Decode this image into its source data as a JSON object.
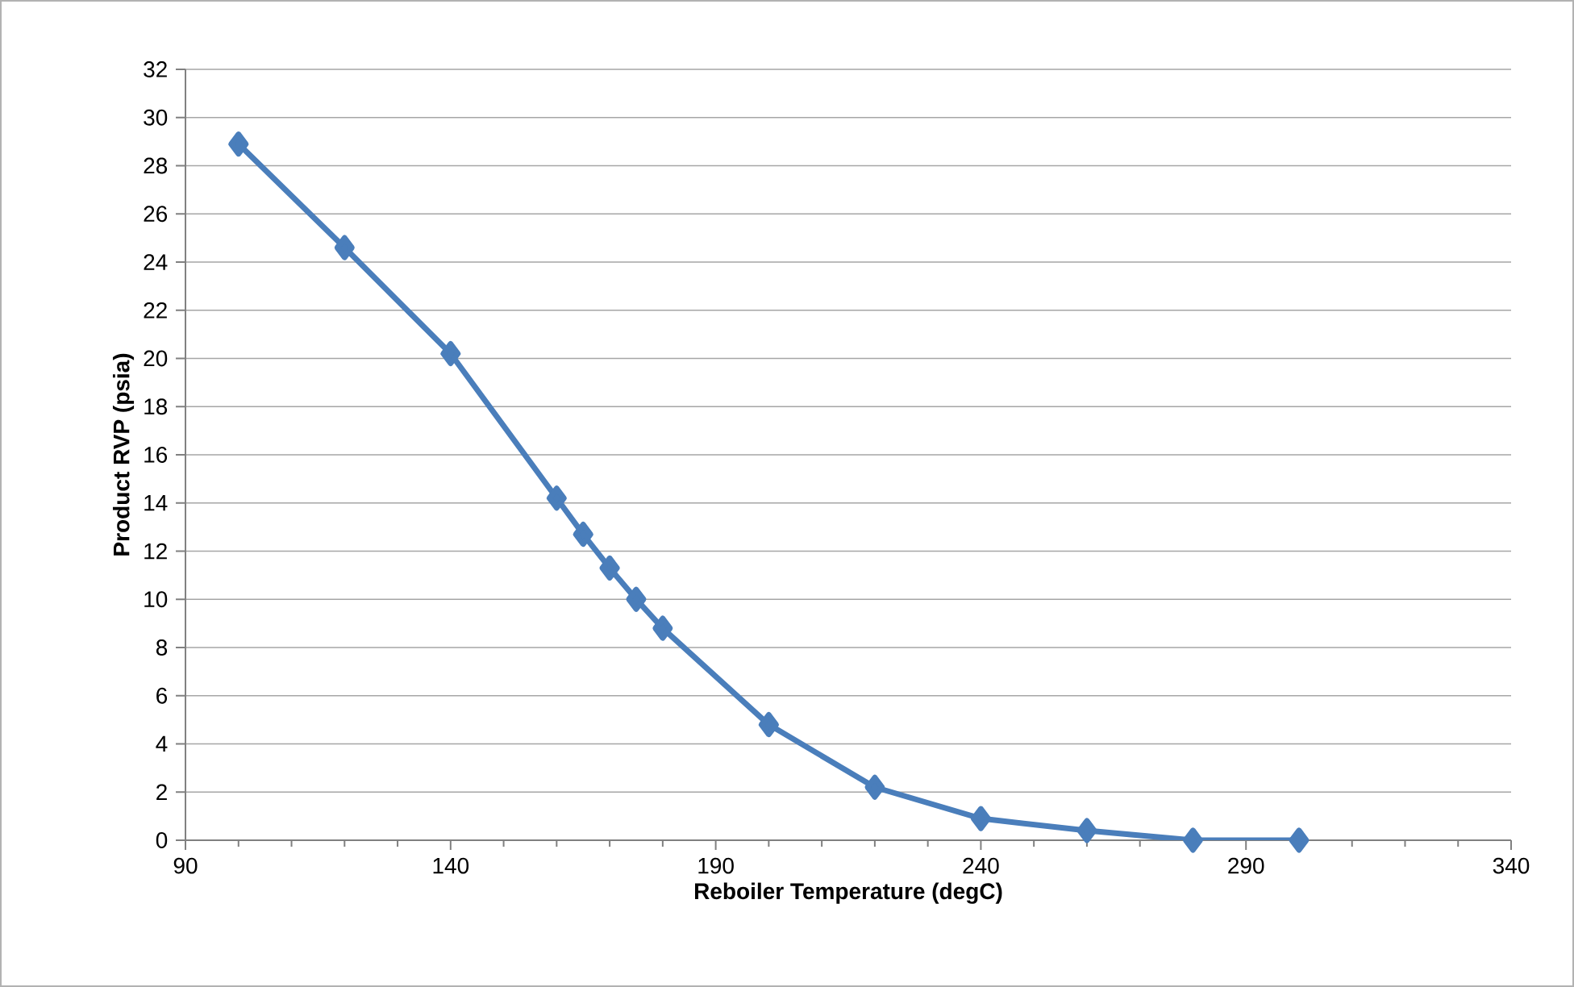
{
  "chart_data": {
    "type": "line",
    "xlabel": "Reboiler Temperature (degC)",
    "ylabel": "Product RVP (psia)",
    "x": [
      100,
      120,
      140,
      160,
      165,
      170,
      175,
      180,
      200,
      220,
      240,
      260,
      280,
      300
    ],
    "series": [
      {
        "color": "#4a7ebb",
        "values": [
          28.9,
          24.6,
          20.2,
          14.2,
          12.7,
          11.3,
          10.0,
          8.8,
          4.8,
          2.2,
          0.9,
          0.4,
          0.0,
          0.0
        ]
      }
    ],
    "xlim": [
      90,
      340
    ],
    "xticks": [
      90,
      140,
      190,
      240,
      290,
      340
    ],
    "ylim": [
      0,
      32
    ],
    "yticks": [
      0,
      2,
      4,
      6,
      8,
      10,
      12,
      14,
      16,
      18,
      20,
      22,
      24,
      26,
      28,
      30,
      32
    ],
    "grid": "y",
    "marker": "diamond",
    "line_style": "solid"
  }
}
